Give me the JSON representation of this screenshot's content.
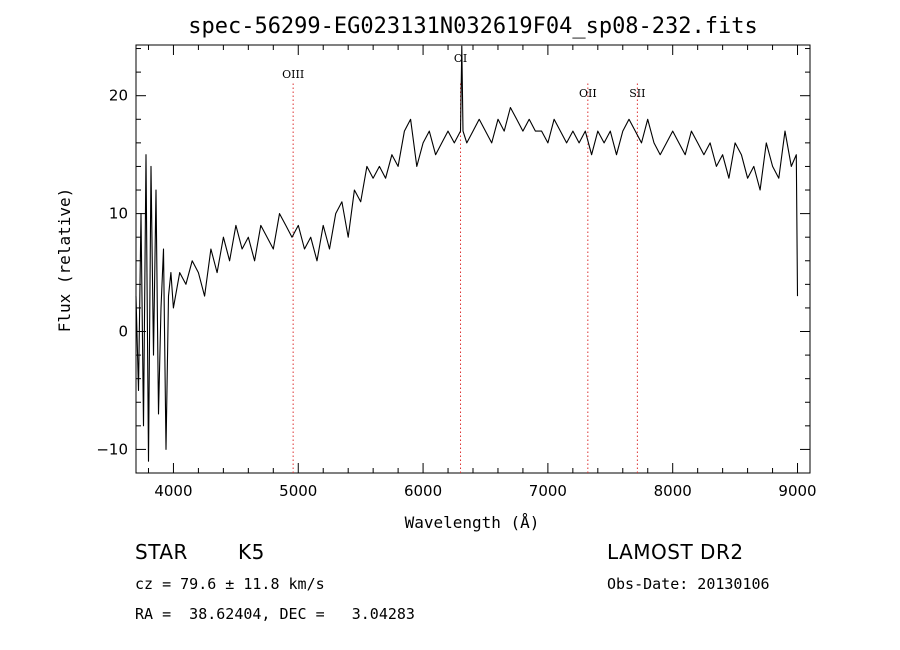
{
  "chart_data": {
    "type": "line",
    "title": "spec-56299-EG023131N032619F04_sp08-232.fits",
    "xlabel": "Wavelength (Å)",
    "ylabel": "Flux (relative)",
    "xlim": [
      3700,
      9100
    ],
    "ylim": [
      -12,
      24.3
    ],
    "x_ticks": [
      4000,
      5000,
      6000,
      7000,
      8000,
      9000
    ],
    "x_tick_labels": [
      "4000",
      "5000",
      "6000",
      "7000",
      "8000",
      "9000"
    ],
    "y_ticks": [
      -10,
      0,
      10,
      20
    ],
    "y_tick_labels": [
      "−10",
      "0",
      "10",
      "20"
    ],
    "grid": false,
    "series": [
      {
        "color": "#000000",
        "x": [
          3700,
          3720,
          3740,
          3760,
          3780,
          3800,
          3820,
          3840,
          3860,
          3880,
          3900,
          3920,
          3940,
          3960,
          3980,
          4000,
          4050,
          4100,
          4150,
          4200,
          4250,
          4300,
          4350,
          4400,
          4450,
          4500,
          4550,
          4600,
          4650,
          4700,
          4750,
          4800,
          4850,
          4900,
          4950,
          5000,
          5050,
          5100,
          5150,
          5200,
          5250,
          5300,
          5350,
          5400,
          5450,
          5500,
          5550,
          5600,
          5650,
          5700,
          5750,
          5800,
          5850,
          5900,
          5950,
          6000,
          6050,
          6100,
          6150,
          6200,
          6250,
          6300,
          6310,
          6320,
          6350,
          6400,
          6450,
          6500,
          6550,
          6600,
          6650,
          6700,
          6750,
          6800,
          6850,
          6900,
          6950,
          7000,
          7050,
          7100,
          7150,
          7200,
          7250,
          7300,
          7350,
          7400,
          7450,
          7500,
          7550,
          7600,
          7650,
          7700,
          7750,
          7800,
          7850,
          7900,
          7950,
          8000,
          8050,
          8100,
          8150,
          8200,
          8250,
          8300,
          8350,
          8400,
          8450,
          8500,
          8550,
          8600,
          8650,
          8700,
          8750,
          8800,
          8850,
          8900,
          8950,
          8990,
          9000
        ],
        "y": [
          3,
          -5,
          10,
          -8,
          15,
          -11,
          14,
          -2,
          12,
          -7,
          2,
          7,
          -10,
          3,
          5,
          2,
          5,
          4,
          6,
          5,
          3,
          7,
          5,
          8,
          6,
          9,
          7,
          8,
          6,
          9,
          8,
          7,
          10,
          9,
          8,
          9,
          7,
          8,
          6,
          9,
          7,
          10,
          11,
          8,
          12,
          11,
          14,
          13,
          14,
          13,
          15,
          14,
          17,
          18,
          14,
          16,
          17,
          15,
          16,
          17,
          16,
          17,
          24.2,
          17,
          16,
          17,
          18,
          17,
          16,
          18,
          17,
          19,
          18,
          17,
          18,
          17,
          17,
          16,
          18,
          17,
          16,
          17,
          16,
          17,
          15,
          17,
          16,
          17,
          15,
          17,
          18,
          17,
          16,
          18,
          16,
          15,
          16,
          17,
          16,
          15,
          17,
          16,
          15,
          16,
          14,
          15,
          13,
          16,
          15,
          13,
          14,
          12,
          16,
          14,
          13,
          17,
          14,
          15,
          3
        ]
      }
    ],
    "emission_lines": [
      {
        "label": "OIII",
        "x": 4959
      },
      {
        "label": "OI",
        "x": 6300
      },
      {
        "label": "OII",
        "x": 7320
      },
      {
        "label": "SII",
        "x": 7717
      }
    ]
  },
  "info": {
    "class": "STAR",
    "subclass": "K5",
    "survey": "LAMOST DR2",
    "cz": "cz = 79.6 ± 11.8 km/s",
    "obs_date": "Obs-Date: 20130106",
    "coords": "RA =  38.62404, DEC =   3.04283"
  }
}
